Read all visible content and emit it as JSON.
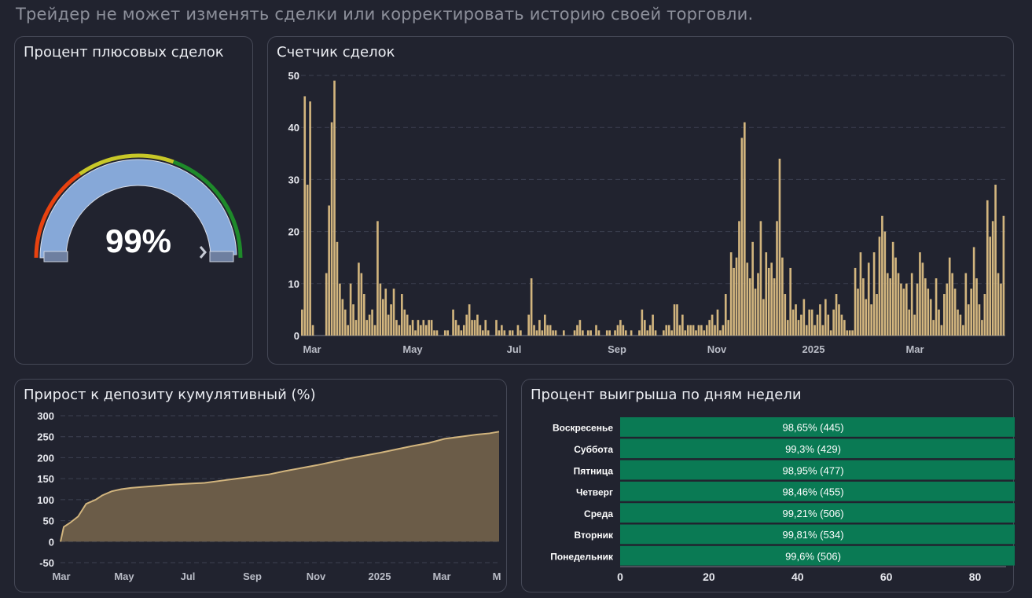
{
  "header": {
    "notice": "Трейдер не может изменять сделки или корректировать историю своей торговли."
  },
  "gauge": {
    "title": "Процент плюсовых сделок",
    "value_label": "99%",
    "percent": 99,
    "colors": {
      "red": "#e8420f",
      "yellow": "#c8c828",
      "green": "#1e8a2a",
      "fill": "#86a8d8"
    }
  },
  "trades_chart": {
    "title": "Счетчик сделок",
    "chart_data": {
      "type": "bar",
      "yticks": [
        0,
        10,
        20,
        30,
        40,
        50
      ],
      "ylim": [
        0,
        50
      ],
      "x_ticks": [
        "Mar",
        "May",
        "Jul",
        "Sep",
        "Nov",
        "2025",
        "Mar"
      ],
      "grid": true,
      "color": "#d2b57e",
      "series": [
        {
          "values": [
            5,
            46,
            29,
            45,
            2,
            0,
            0,
            0,
            0,
            12,
            25,
            41,
            49,
            18,
            10,
            7,
            5,
            2,
            10,
            6,
            3,
            14,
            12,
            8,
            3,
            4,
            5,
            2,
            22,
            10,
            7,
            9,
            4,
            6,
            9,
            3,
            2,
            8,
            5,
            4,
            2,
            3,
            1,
            3,
            2,
            3,
            2,
            3,
            3,
            1,
            1,
            0,
            0,
            1,
            1,
            0,
            5,
            3,
            2,
            1,
            2,
            4,
            6,
            3,
            3,
            4,
            2,
            1,
            3,
            1,
            0,
            0,
            3,
            1,
            2,
            1,
            0,
            1,
            1,
            0,
            2,
            1,
            0,
            0,
            4,
            11,
            2,
            1,
            3,
            1,
            4,
            2,
            2,
            1,
            1,
            0,
            0,
            1,
            0,
            0,
            0,
            1,
            2,
            3,
            1,
            0,
            1,
            1,
            0,
            2,
            1,
            0,
            0,
            1,
            1,
            0,
            1,
            2,
            3,
            2,
            1,
            0,
            1,
            0,
            0,
            1,
            5,
            3,
            1,
            2,
            4,
            1,
            0,
            0,
            1,
            2,
            2,
            1,
            6,
            6,
            2,
            4,
            1,
            2,
            2,
            2,
            1,
            2,
            2,
            1,
            2,
            3,
            4,
            2,
            5,
            1,
            2,
            8,
            3,
            16,
            13,
            15,
            22,
            38,
            41,
            14,
            11,
            18,
            9,
            12,
            22,
            7,
            16,
            13,
            14,
            11,
            22,
            34,
            15,
            8,
            3,
            13,
            5,
            6,
            3,
            4,
            7,
            2,
            5,
            5,
            2,
            4,
            6,
            2,
            7,
            4,
            1,
            5,
            8,
            6,
            4,
            3,
            1,
            1,
            1,
            13,
            9,
            16,
            11,
            7,
            14,
            6,
            16,
            8,
            19,
            23,
            20,
            12,
            11,
            18,
            15,
            12,
            10,
            9,
            10,
            5,
            12,
            4,
            10,
            16,
            14,
            11,
            9,
            7,
            3,
            11,
            5,
            2,
            8,
            10,
            15,
            12,
            9,
            5,
            4,
            2,
            12,
            6,
            9,
            17,
            11,
            6,
            3,
            8,
            26,
            19,
            22,
            29,
            12,
            10,
            23
          ]
        }
      ]
    }
  },
  "deposit_chart": {
    "title": "Прирост к депозиту кумулятивный (%)",
    "chart_data": {
      "type": "area",
      "yticks": [
        -50,
        0,
        50,
        100,
        150,
        200,
        250,
        300
      ],
      "ylim": [
        -50,
        300
      ],
      "x_ticks": [
        "Mar",
        "May",
        "Jul",
        "Sep",
        "Nov",
        "2025",
        "Mar",
        "M"
      ],
      "grid": true,
      "color": "#d2b57e",
      "x": [
        0,
        0.1,
        0.3,
        0.55,
        0.8,
        1.1,
        1.3,
        1.6,
        1.9,
        2.2,
        2.5,
        3.0,
        3.5,
        4.0,
        4.5,
        5.0,
        5.5,
        6.0,
        6.5,
        7.0,
        7.5,
        8.0,
        8.5,
        9.0,
        9.5,
        10.0,
        10.5,
        11.0,
        11.5,
        12.0,
        12.5,
        13.0,
        13.4,
        13.7
      ],
      "values": [
        0,
        35,
        45,
        60,
        90,
        100,
        110,
        120,
        125,
        128,
        130,
        133,
        136,
        138,
        140,
        145,
        150,
        155,
        160,
        168,
        175,
        182,
        190,
        198,
        205,
        212,
        220,
        228,
        235,
        245,
        250,
        255,
        258,
        262
      ]
    }
  },
  "weekday_chart": {
    "title": "Процент выигрыша по дням недели",
    "chart_data": {
      "type": "bar",
      "orientation": "horizontal",
      "categories": [
        "Воскресенье",
        "Суббота",
        "Пятница",
        "Четверг",
        "Среда",
        "Вторник",
        "Понедельник"
      ],
      "values": [
        98.65,
        99.3,
        98.95,
        98.46,
        99.21,
        99.81,
        99.6
      ],
      "labels": [
        "98,65% (445)",
        "99,3% (429)",
        "98,95% (477)",
        "98,46% (455)",
        "99,21% (506)",
        "99,81% (534)",
        "99,6% (506)"
      ],
      "xticks": [
        0,
        20,
        40,
        60,
        80
      ],
      "xlim": [
        0,
        87
      ],
      "color": "#0a7a54"
    }
  }
}
